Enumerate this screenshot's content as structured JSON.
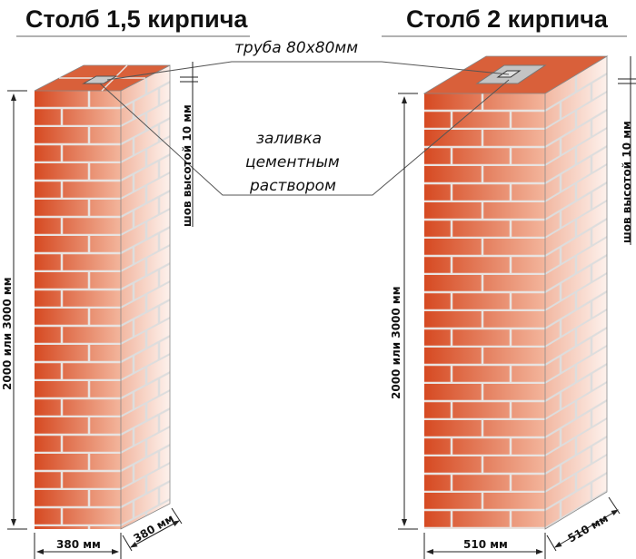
{
  "left_pillar": {
    "title": "Столб 1,5 кирпича",
    "height_label": "2000 или 3000 мм",
    "width_label": "380 мм",
    "depth_label": "380 мм",
    "joint_label": "шов высотой 10 мм"
  },
  "right_pillar": {
    "title": "Столб 2 кирпича",
    "height_label": "2000 или 3000 мм",
    "width_label": "510 мм",
    "depth_label": "510 мм",
    "joint_label": "шов высотой 10 мм"
  },
  "callouts": {
    "pipe": "труба 80x80мм",
    "fill_1": "заливка",
    "fill_2": "цементным",
    "fill_3": "раствором"
  },
  "colors": {
    "brick_dark": "#d9502a",
    "brick_light": "#f6c9b6",
    "mortar": "#e8e0dc"
  }
}
